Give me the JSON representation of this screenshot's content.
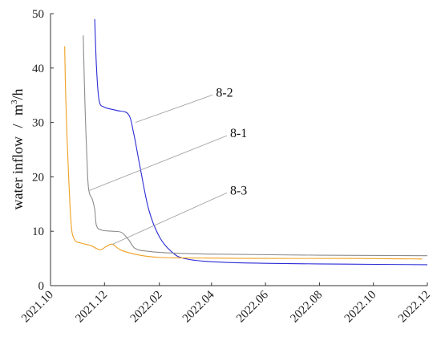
{
  "chart_data": {
    "type": "line",
    "title": "",
    "xlabel": "",
    "ylabel": "water inflow",
    "ylabel_separator": "/",
    "ylabel_unit_base": "m",
    "ylabel_unit_sup": "3",
    "ylabel_unit_tail": "/h",
    "xlim": [
      "2021-10-01",
      "2022-12-01"
    ],
    "ylim": [
      0,
      50
    ],
    "yticks": [
      0,
      10,
      20,
      30,
      40,
      50
    ],
    "xticks": [
      "2021.10",
      "2021.12",
      "2022.02",
      "2022.04",
      "2022.06",
      "2022.08",
      "2022.10",
      "2022.12"
    ],
    "xtick_dates": [
      "2021-10-01",
      "2021-12-01",
      "2022-02-01",
      "2022-04-01",
      "2022-06-01",
      "2022-08-01",
      "2022-10-01",
      "2022-12-01"
    ],
    "grid": false,
    "series": [
      {
        "name": "8-2",
        "color": "#2b2bd6",
        "points": [
          [
            "2021-11-20",
            49
          ],
          [
            "2021-11-22",
            40
          ],
          [
            "2021-11-25",
            34
          ],
          [
            "2021-12-01",
            32.8
          ],
          [
            "2021-12-15",
            32.2
          ],
          [
            "2021-12-28",
            31.5
          ],
          [
            "2022-01-03",
            28
          ],
          [
            "2022-01-10",
            22
          ],
          [
            "2022-01-20",
            14
          ],
          [
            "2022-02-01",
            9
          ],
          [
            "2022-02-15",
            6.2
          ],
          [
            "2022-03-01",
            5.0
          ],
          [
            "2022-04-01",
            4.4
          ],
          [
            "2022-06-01",
            4.1
          ],
          [
            "2022-09-01",
            3.95
          ],
          [
            "2022-12-01",
            3.85
          ]
        ]
      },
      {
        "name": "8-1",
        "color": "#8c8c8c",
        "points": [
          [
            "2021-11-07",
            46
          ],
          [
            "2021-11-09",
            33
          ],
          [
            "2021-11-12",
            20
          ],
          [
            "2021-11-14",
            17
          ],
          [
            "2021-11-17",
            16
          ],
          [
            "2021-11-20",
            14
          ],
          [
            "2021-11-22",
            11
          ],
          [
            "2021-11-28",
            10.2
          ],
          [
            "2021-12-10",
            10.0
          ],
          [
            "2021-12-20",
            9.8
          ],
          [
            "2021-12-28",
            8.5
          ],
          [
            "2022-01-05",
            6.8
          ],
          [
            "2022-01-20",
            6.3
          ],
          [
            "2022-02-15",
            6.0
          ],
          [
            "2022-04-01",
            5.8
          ],
          [
            "2022-08-01",
            5.6
          ],
          [
            "2022-12-01",
            5.5
          ]
        ]
      },
      {
        "name": "8-3",
        "color": "#f0a020",
        "points": [
          [
            "2021-10-17",
            44
          ],
          [
            "2021-10-18",
            36
          ],
          [
            "2021-10-20",
            26
          ],
          [
            "2021-10-24",
            12
          ],
          [
            "2021-10-28",
            8.5
          ],
          [
            "2021-11-05",
            7.8
          ],
          [
            "2021-11-15",
            7.4
          ],
          [
            "2021-11-26",
            6.6
          ],
          [
            "2021-12-03",
            7.2
          ],
          [
            "2021-12-10",
            7.6
          ],
          [
            "2021-12-20",
            6.5
          ],
          [
            "2022-01-10",
            5.6
          ],
          [
            "2022-02-01",
            5.2
          ],
          [
            "2022-03-01",
            5.1
          ],
          [
            "2022-06-01",
            5.0
          ],
          [
            "2022-09-01",
            5.0
          ],
          [
            "2022-11-25",
            4.9
          ]
        ]
      }
    ],
    "annotations": [
      {
        "text": "8-2",
        "series": "8-2",
        "point": [
          "2022-01-05",
          30
        ],
        "label_at": [
          "2022-04-06",
          35.5
        ]
      },
      {
        "text": "8-1",
        "series": "8-1",
        "point": [
          "2021-11-14",
          17.5
        ],
        "label_at": [
          "2022-04-22",
          28
        ]
      },
      {
        "text": "8-3",
        "series": "8-3",
        "point": [
          "2021-12-10",
          7.6
        ],
        "label_at": [
          "2022-04-22",
          17.5
        ]
      }
    ]
  }
}
